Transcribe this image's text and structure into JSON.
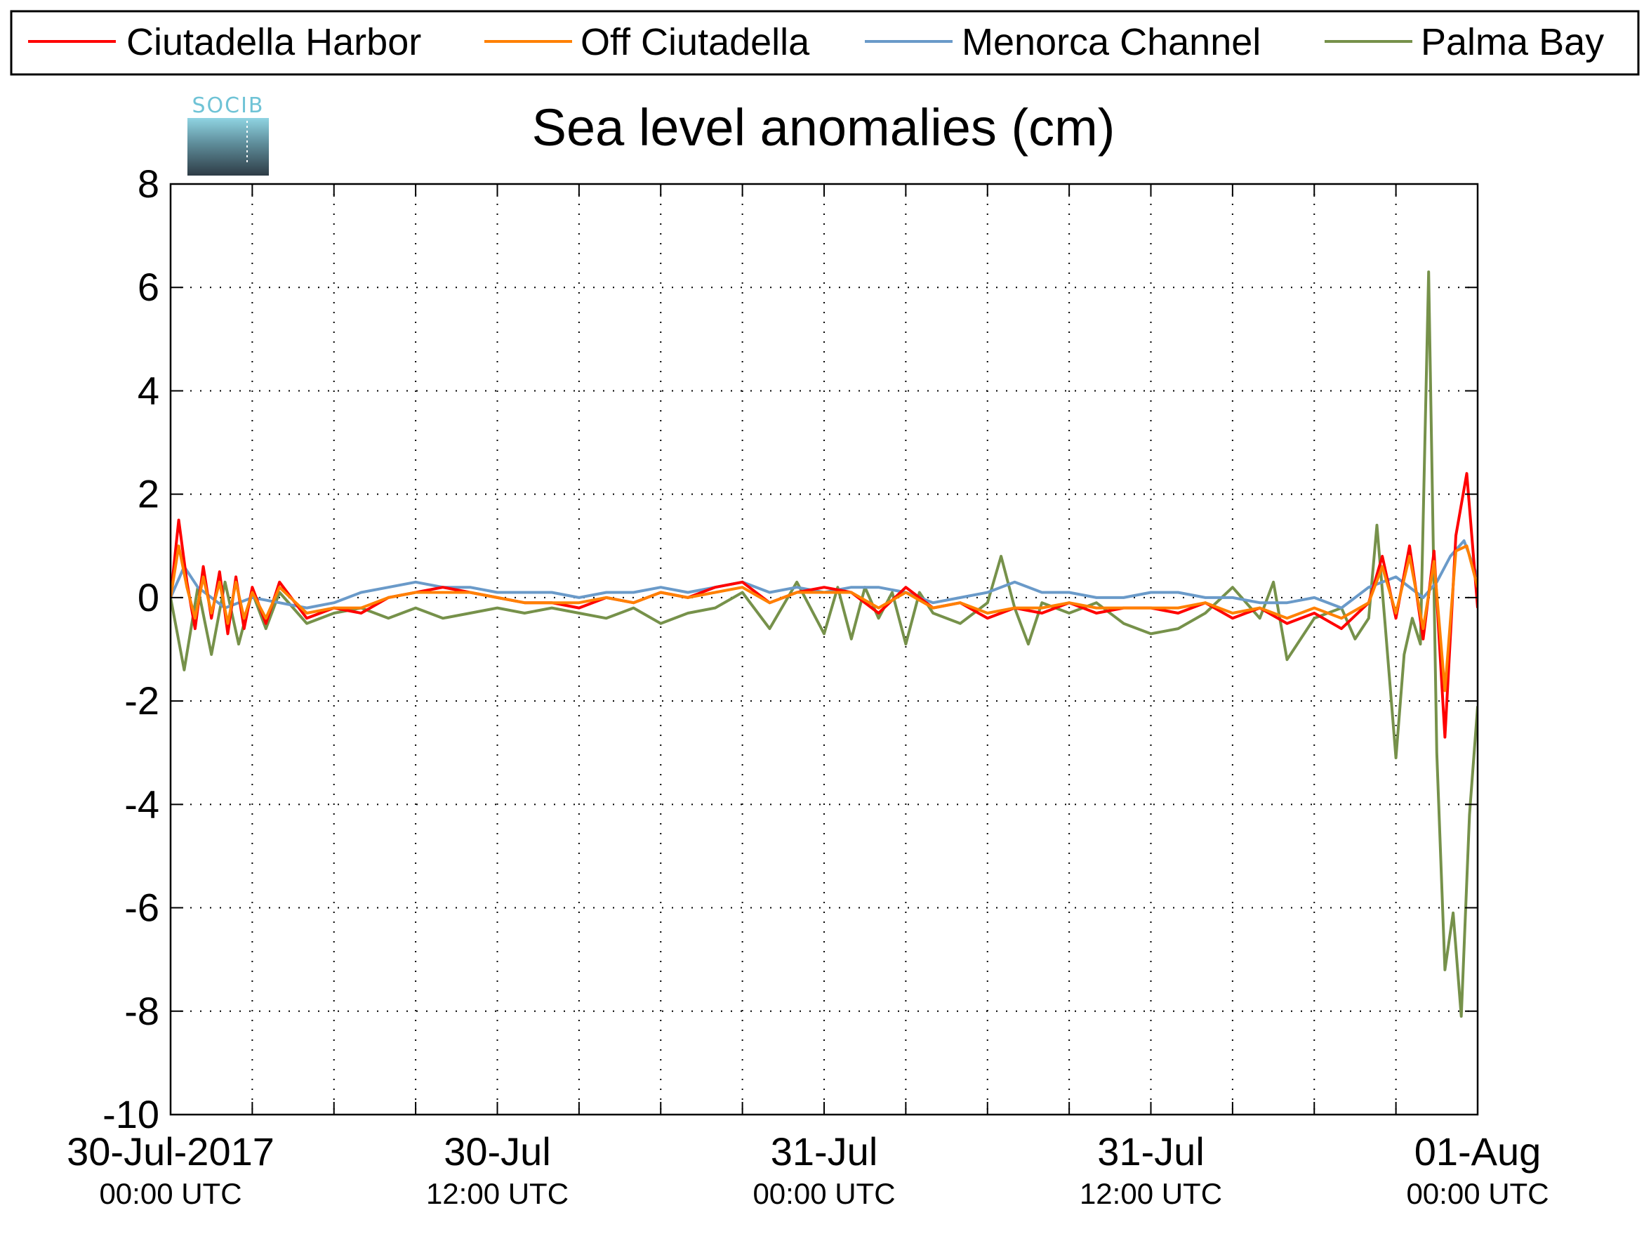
{
  "chart_data": {
    "type": "line",
    "title": "Sea level anomalies (cm)",
    "logo_text": "SOCIB",
    "xlabel": "",
    "ylabel": "",
    "ylim": [
      -10,
      8
    ],
    "yticks": [
      -10,
      -8,
      -6,
      -4,
      -2,
      0,
      2,
      4,
      6,
      8
    ],
    "xlim_hours": [
      0,
      48
    ],
    "xticks_major": [
      {
        "hour": 0,
        "line1": "30-Jul-2017",
        "line2": "00:00 UTC"
      },
      {
        "hour": 12,
        "line1": "30-Jul",
        "line2": "12:00 UTC"
      },
      {
        "hour": 24,
        "line1": "31-Jul",
        "line2": "00:00 UTC"
      },
      {
        "hour": 36,
        "line1": "31-Jul",
        "line2": "12:00 UTC"
      },
      {
        "hour": 48,
        "line1": "01-Aug",
        "line2": "00:00 UTC"
      }
    ],
    "xticks_minor_hours": [
      3,
      6,
      9,
      15,
      18,
      21,
      27,
      30,
      33,
      39,
      42,
      45
    ],
    "grid": true,
    "legend_position": "top",
    "series": [
      {
        "name": "Ciutadella Harbor",
        "color": "#ff0000",
        "x": [
          0,
          0.3,
          0.6,
          0.9,
          1.2,
          1.5,
          1.8,
          2.1,
          2.4,
          2.7,
          3.0,
          3.5,
          4.0,
          5,
          6,
          7,
          8,
          9,
          10,
          11,
          12,
          13,
          14,
          15,
          16,
          17,
          18,
          19,
          20,
          21,
          22,
          23,
          24,
          25,
          26,
          27,
          28,
          29,
          30,
          31,
          32,
          33,
          34,
          35,
          36,
          37,
          38,
          39,
          40,
          41,
          42,
          43,
          44,
          44.5,
          45,
          45.5,
          46,
          46.4,
          46.8,
          47.2,
          47.6,
          48
        ],
        "y": [
          0.0,
          1.5,
          0.3,
          -0.6,
          0.6,
          -0.4,
          0.5,
          -0.7,
          0.4,
          -0.6,
          0.2,
          -0.5,
          0.3,
          -0.4,
          -0.2,
          -0.3,
          0.0,
          0.1,
          0.2,
          0.1,
          0.0,
          -0.1,
          -0.1,
          -0.2,
          0.0,
          -0.1,
          0.1,
          0.0,
          0.2,
          0.3,
          -0.1,
          0.1,
          0.2,
          0.1,
          -0.3,
          0.2,
          -0.2,
          -0.1,
          -0.4,
          -0.2,
          -0.3,
          -0.1,
          -0.3,
          -0.2,
          -0.2,
          -0.3,
          -0.1,
          -0.4,
          -0.2,
          -0.5,
          -0.3,
          -0.6,
          -0.1,
          0.8,
          -0.4,
          1.0,
          -0.8,
          0.9,
          -2.7,
          1.2,
          2.4,
          -0.2
        ]
      },
      {
        "name": "Off Ciutadella",
        "color": "#ff8000",
        "x": [
          0,
          0.3,
          0.6,
          0.9,
          1.2,
          1.5,
          1.8,
          2.1,
          2.4,
          2.7,
          3.0,
          3.5,
          4.0,
          5,
          6,
          7,
          8,
          9,
          10,
          11,
          12,
          13,
          14,
          15,
          16,
          17,
          18,
          19,
          20,
          21,
          22,
          23,
          24,
          25,
          26,
          27,
          28,
          29,
          30,
          31,
          32,
          33,
          34,
          35,
          36,
          37,
          38,
          39,
          40,
          41,
          42,
          43,
          44,
          44.5,
          45,
          45.5,
          46,
          46.4,
          46.8,
          47.2,
          47.6,
          48
        ],
        "y": [
          0.0,
          1.0,
          0.2,
          -0.4,
          0.4,
          -0.3,
          0.3,
          -0.5,
          0.3,
          -0.4,
          0.1,
          -0.4,
          0.2,
          -0.3,
          -0.2,
          -0.2,
          0.0,
          0.1,
          0.1,
          0.1,
          0.0,
          -0.1,
          -0.1,
          -0.1,
          0.0,
          -0.1,
          0.1,
          0.0,
          0.1,
          0.2,
          -0.1,
          0.1,
          0.1,
          0.1,
          -0.2,
          0.1,
          -0.2,
          -0.1,
          -0.3,
          -0.2,
          -0.2,
          -0.1,
          -0.2,
          -0.2,
          -0.2,
          -0.2,
          -0.1,
          -0.3,
          -0.2,
          -0.4,
          -0.2,
          -0.4,
          -0.1,
          0.6,
          -0.3,
          0.8,
          -0.6,
          0.7,
          -1.8,
          0.9,
          1.0,
          0.2
        ]
      },
      {
        "name": "Menorca Channel",
        "color": "#6a9ac9",
        "x": [
          0,
          0.5,
          1,
          2,
          3,
          4,
          5,
          6,
          7,
          8,
          9,
          10,
          11,
          12,
          13,
          14,
          15,
          16,
          17,
          18,
          19,
          20,
          21,
          22,
          23,
          24,
          25,
          26,
          27,
          28,
          29,
          30,
          31,
          32,
          33,
          34,
          35,
          36,
          37,
          38,
          39,
          40,
          41,
          42,
          43,
          44,
          45,
          46,
          46.5,
          47,
          47.5,
          48
        ],
        "y": [
          0.0,
          0.6,
          0.2,
          -0.2,
          0.0,
          -0.1,
          -0.2,
          -0.1,
          0.1,
          0.2,
          0.3,
          0.2,
          0.2,
          0.1,
          0.1,
          0.1,
          0.0,
          0.1,
          0.1,
          0.2,
          0.1,
          0.2,
          0.3,
          0.1,
          0.2,
          0.1,
          0.2,
          0.2,
          0.1,
          -0.1,
          0.0,
          0.1,
          0.3,
          0.1,
          0.1,
          0.0,
          0.0,
          0.1,
          0.1,
          0.0,
          0.0,
          -0.1,
          -0.1,
          0.0,
          -0.2,
          0.2,
          0.4,
          0.0,
          0.3,
          0.8,
          1.1,
          0.4
        ]
      },
      {
        "name": "Palma Bay",
        "color": "#76914a",
        "x": [
          0,
          0.5,
          1.0,
          1.5,
          2.0,
          2.5,
          3.0,
          3.5,
          4.0,
          5,
          6,
          7,
          8,
          9,
          10,
          11,
          12,
          13,
          14,
          15,
          16,
          17,
          18,
          19,
          20,
          21,
          22,
          23,
          24,
          24.5,
          25,
          25.5,
          26,
          26.5,
          27,
          27.5,
          28,
          29,
          30,
          30.5,
          31,
          31.5,
          32,
          33,
          34,
          35,
          36,
          37,
          38,
          39,
          40,
          40.5,
          41,
          42,
          43,
          43.5,
          44,
          44.3,
          44.6,
          45,
          45.3,
          45.6,
          45.9,
          46.2,
          46.5,
          46.8,
          47.1,
          47.4,
          47.7,
          48
        ],
        "y": [
          0.0,
          -1.4,
          0.2,
          -1.1,
          0.3,
          -0.9,
          0.1,
          -0.6,
          0.1,
          -0.5,
          -0.3,
          -0.2,
          -0.4,
          -0.2,
          -0.4,
          -0.3,
          -0.2,
          -0.3,
          -0.2,
          -0.3,
          -0.4,
          -0.2,
          -0.5,
          -0.3,
          -0.2,
          0.1,
          -0.6,
          0.3,
          -0.7,
          0.2,
          -0.8,
          0.2,
          -0.4,
          0.1,
          -0.9,
          0.1,
          -0.3,
          -0.5,
          -0.1,
          0.8,
          -0.2,
          -0.9,
          -0.1,
          -0.3,
          -0.1,
          -0.5,
          -0.7,
          -0.6,
          -0.3,
          0.2,
          -0.4,
          0.3,
          -1.2,
          -0.4,
          -0.2,
          -0.8,
          -0.4,
          1.4,
          -0.5,
          -3.1,
          -1.1,
          -0.4,
          -0.9,
          6.3,
          -3.0,
          -7.2,
          -6.1,
          -8.1,
          -4.2,
          -2.1
        ]
      }
    ]
  }
}
